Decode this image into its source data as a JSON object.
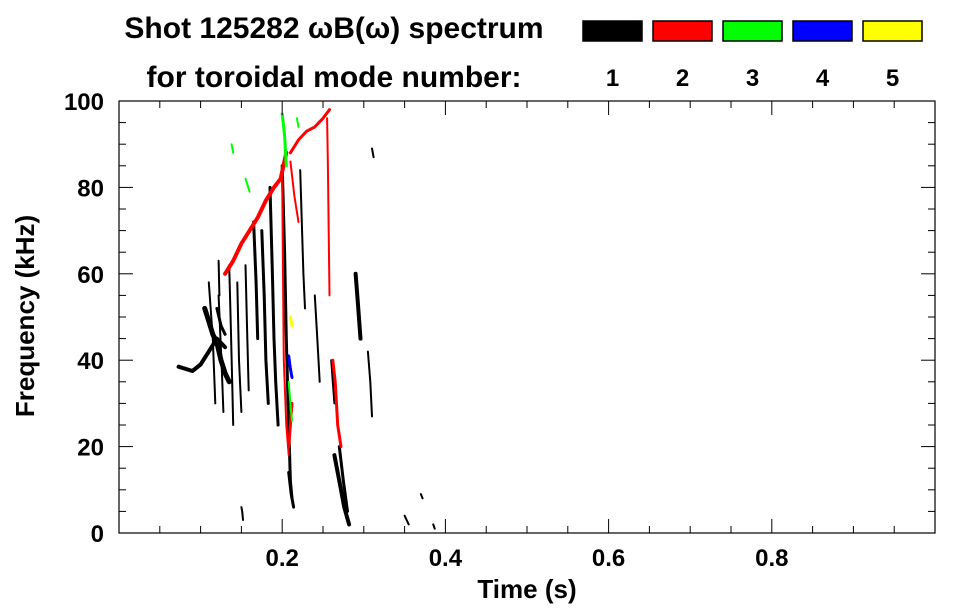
{
  "chart_data": {
    "type": "heatmap",
    "title_line1": "Shot 125282 ωB(ω) spectrum",
    "title_line2": "for toroidal mode number:",
    "xlabel": "Time (s)",
    "ylabel": "Frequency (kHz)",
    "xlim": [
      0.0,
      1.0
    ],
    "ylim": [
      0,
      100
    ],
    "xticks": [
      0.2,
      0.4,
      0.6,
      0.8
    ],
    "xtick_labels": [
      "0.2",
      "0.4",
      "0.6",
      "0.8"
    ],
    "yticks": [
      0,
      20,
      40,
      60,
      80,
      100
    ],
    "ytick_labels": [
      "0",
      "20",
      "40",
      "60",
      "80",
      "100"
    ],
    "legend_placement": "top-right",
    "modes": [
      {
        "n": "1",
        "color": "#000000"
      },
      {
        "n": "2",
        "color": "#ff0000"
      },
      {
        "n": "3",
        "color": "#00ff00"
      },
      {
        "n": "4",
        "color": "#0000ff"
      },
      {
        "n": "5",
        "color": "#ffff00"
      }
    ],
    "segments": [
      {
        "mode": "1",
        "points": [
          [
            0.073,
            38.5
          ],
          [
            0.09,
            37.5
          ],
          [
            0.1,
            39
          ],
          [
            0.11,
            42
          ],
          [
            0.12,
            45
          ],
          [
            0.13,
            43
          ]
        ],
        "width": 4
      },
      {
        "mode": "1",
        "points": [
          [
            0.105,
            52
          ],
          [
            0.11,
            49
          ],
          [
            0.115,
            46
          ],
          [
            0.12,
            44
          ],
          [
            0.125,
            40
          ],
          [
            0.13,
            37
          ],
          [
            0.135,
            35
          ]
        ],
        "width": 5
      },
      {
        "mode": "1",
        "points": [
          [
            0.12,
            52
          ],
          [
            0.125,
            48
          ],
          [
            0.13,
            46
          ]
        ],
        "width": 3
      },
      {
        "mode": "1",
        "points": [
          [
            0.11,
            58
          ],
          [
            0.115,
            45
          ],
          [
            0.118,
            30
          ]
        ],
        "width": 2
      },
      {
        "mode": "1",
        "points": [
          [
            0.122,
            55
          ],
          [
            0.126,
            38
          ],
          [
            0.128,
            28
          ]
        ],
        "width": 2
      },
      {
        "mode": "1",
        "points": [
          [
            0.135,
            62
          ],
          [
            0.137,
            48
          ],
          [
            0.139,
            33
          ],
          [
            0.14,
            25
          ]
        ],
        "width": 2
      },
      {
        "mode": "1",
        "points": [
          [
            0.145,
            58
          ],
          [
            0.147,
            40
          ],
          [
            0.15,
            28
          ]
        ],
        "width": 2
      },
      {
        "mode": "1",
        "points": [
          [
            0.155,
            62
          ],
          [
            0.157,
            47
          ],
          [
            0.159,
            33
          ]
        ],
        "width": 2
      },
      {
        "mode": "1",
        "points": [
          [
            0.165,
            72
          ],
          [
            0.168,
            58
          ],
          [
            0.17,
            45
          ]
        ],
        "width": 3
      },
      {
        "mode": "1",
        "points": [
          [
            0.175,
            70
          ],
          [
            0.178,
            55
          ],
          [
            0.18,
            40
          ],
          [
            0.183,
            30
          ]
        ],
        "width": 3
      },
      {
        "mode": "1",
        "points": [
          [
            0.185,
            80
          ],
          [
            0.188,
            60
          ],
          [
            0.19,
            45
          ],
          [
            0.192,
            35
          ],
          [
            0.195,
            25
          ]
        ],
        "width": 3
      },
      {
        "mode": "1",
        "points": [
          [
            0.2,
            85
          ],
          [
            0.203,
            65
          ],
          [
            0.205,
            45
          ],
          [
            0.208,
            25
          ],
          [
            0.21,
            12
          ],
          [
            0.212,
            8
          ]
        ],
        "width": 3
      },
      {
        "mode": "1",
        "points": [
          [
            0.208,
            14
          ],
          [
            0.211,
            9
          ],
          [
            0.214,
            6
          ]
        ],
        "width": 3
      },
      {
        "mode": "1",
        "points": [
          [
            0.222,
            84
          ],
          [
            0.224,
            72
          ],
          [
            0.226,
            60
          ],
          [
            0.228,
            52
          ]
        ],
        "width": 2
      },
      {
        "mode": "1",
        "points": [
          [
            0.24,
            55
          ],
          [
            0.243,
            45
          ],
          [
            0.246,
            35
          ]
        ],
        "width": 2
      },
      {
        "mode": "1",
        "points": [
          [
            0.26,
            40
          ],
          [
            0.262,
            35
          ],
          [
            0.264,
            30
          ]
        ],
        "width": 2
      },
      {
        "mode": "1",
        "points": [
          [
            0.264,
            18
          ],
          [
            0.268,
            14
          ],
          [
            0.272,
            10
          ],
          [
            0.276,
            6
          ],
          [
            0.282,
            2
          ]
        ],
        "width": 4
      },
      {
        "mode": "1",
        "points": [
          [
            0.29,
            60
          ],
          [
            0.292,
            55
          ],
          [
            0.294,
            50
          ],
          [
            0.296,
            45
          ]
        ],
        "width": 4
      },
      {
        "mode": "1",
        "points": [
          [
            0.305,
            42
          ],
          [
            0.308,
            35
          ],
          [
            0.31,
            27
          ]
        ],
        "width": 2
      },
      {
        "mode": "1",
        "points": [
          [
            0.27,
            20
          ],
          [
            0.275,
            12
          ],
          [
            0.28,
            5
          ]
        ],
        "width": 3
      },
      {
        "mode": "1",
        "points": [
          [
            0.15,
            6
          ],
          [
            0.151,
            5
          ],
          [
            0.152,
            3
          ]
        ],
        "width": 2
      },
      {
        "mode": "1",
        "points": [
          [
            0.35,
            4
          ],
          [
            0.355,
            2
          ]
        ],
        "width": 2
      },
      {
        "mode": "1",
        "points": [
          [
            0.37,
            9
          ],
          [
            0.372,
            8
          ]
        ],
        "width": 2
      },
      {
        "mode": "1",
        "points": [
          [
            0.385,
            2
          ],
          [
            0.387,
            1
          ]
        ],
        "width": 2
      },
      {
        "mode": "1",
        "points": [
          [
            0.122,
            63
          ],
          [
            0.123,
            55
          ]
        ],
        "width": 2
      },
      {
        "mode": "1",
        "points": [
          [
            0.31,
            89
          ],
          [
            0.312,
            87
          ]
        ],
        "width": 2
      },
      {
        "mode": "2",
        "points": [
          [
            0.13,
            60
          ],
          [
            0.14,
            63
          ],
          [
            0.15,
            67
          ],
          [
            0.16,
            70
          ],
          [
            0.17,
            73
          ],
          [
            0.18,
            77
          ],
          [
            0.19,
            80
          ],
          [
            0.198,
            82
          ],
          [
            0.205,
            88
          ]
        ],
        "width": 4
      },
      {
        "mode": "2",
        "points": [
          [
            0.21,
            88
          ],
          [
            0.22,
            91
          ],
          [
            0.23,
            93
          ],
          [
            0.24,
            94
          ],
          [
            0.25,
            96
          ],
          [
            0.258,
            98
          ]
        ],
        "width": 3
      },
      {
        "mode": "2",
        "points": [
          [
            0.2,
            82
          ],
          [
            0.201,
            60
          ],
          [
            0.202,
            40
          ],
          [
            0.205,
            25
          ],
          [
            0.208,
            18
          ]
        ],
        "width": 2
      },
      {
        "mode": "2",
        "points": [
          [
            0.212,
            30
          ],
          [
            0.21,
            25
          ],
          [
            0.208,
            20
          ]
        ],
        "width": 3
      },
      {
        "mode": "2",
        "points": [
          [
            0.255,
            96
          ],
          [
            0.256,
            85
          ],
          [
            0.257,
            70
          ],
          [
            0.258,
            55
          ]
        ],
        "width": 2
      },
      {
        "mode": "2",
        "points": [
          [
            0.262,
            40
          ],
          [
            0.265,
            35
          ],
          [
            0.268,
            25
          ],
          [
            0.272,
            20
          ]
        ],
        "width": 3
      },
      {
        "mode": "2",
        "points": [
          [
            0.21,
            86
          ],
          [
            0.215,
            78
          ],
          [
            0.22,
            72
          ]
        ],
        "width": 2
      },
      {
        "mode": "3",
        "points": [
          [
            0.2,
            97
          ],
          [
            0.203,
            92
          ],
          [
            0.205,
            85
          ]
        ],
        "width": 3
      },
      {
        "mode": "3",
        "points": [
          [
            0.155,
            82
          ],
          [
            0.16,
            79
          ]
        ],
        "width": 2
      },
      {
        "mode": "3",
        "points": [
          [
            0.138,
            90
          ],
          [
            0.14,
            88
          ]
        ],
        "width": 2
      },
      {
        "mode": "3",
        "points": [
          [
            0.208,
            35
          ],
          [
            0.21,
            30
          ],
          [
            0.212,
            26
          ]
        ],
        "width": 2
      },
      {
        "mode": "3",
        "points": [
          [
            0.218,
            96
          ],
          [
            0.22,
            94
          ]
        ],
        "width": 2
      },
      {
        "mode": "4",
        "points": [
          [
            0.208,
            41
          ],
          [
            0.21,
            38
          ],
          [
            0.212,
            36
          ]
        ],
        "width": 3
      },
      {
        "mode": "5",
        "points": [
          [
            0.21,
            50
          ],
          [
            0.212,
            48
          ]
        ],
        "width": 3
      }
    ]
  }
}
